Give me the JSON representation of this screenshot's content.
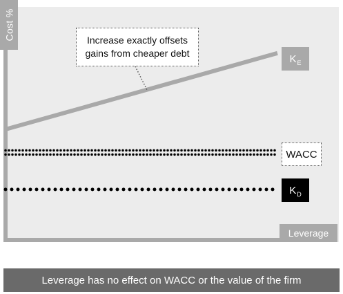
{
  "chart_data": {
    "type": "line",
    "ylabel": "Cost %",
    "xlabel": "Leverage",
    "ylim": [
      0,
      100
    ],
    "xlim": [
      0,
      100
    ],
    "grid": false,
    "series": [
      {
        "name": "KE",
        "label_main": "K",
        "label_sub": "E",
        "x": [
          0,
          100
        ],
        "values": [
          47,
          80
        ],
        "style": "solid",
        "color": "#a9a9a9"
      },
      {
        "name": "WACC",
        "label_main": "WACC",
        "label_sub": "",
        "x": [
          0,
          100
        ],
        "values": [
          37,
          37
        ],
        "style": "double-dotted",
        "color": "#000000"
      },
      {
        "name": "KD",
        "label_main": "K",
        "label_sub": "D",
        "x": [
          0,
          100
        ],
        "values": [
          21,
          21
        ],
        "style": "dotted",
        "color": "#000000"
      }
    ],
    "annotation": {
      "lines": [
        "Increase exactly offsets",
        "gains from cheaper debt"
      ],
      "points_to_series": "KE",
      "points_to_x": 52
    }
  },
  "footer": {
    "text": "Leverage has no effect on WACC or the value of the firm"
  },
  "colors": {
    "plot_background": "#ececec",
    "axis": "#a9a9a9",
    "footer_background": "#6a6a6a",
    "kd_label_background": "#000000"
  }
}
